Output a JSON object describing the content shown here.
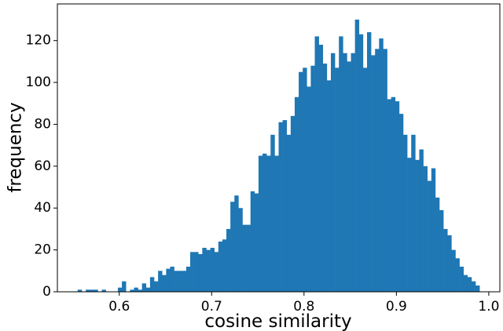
{
  "chart_data": {
    "type": "histogram",
    "x_label": "cosine similarity",
    "y_label": "frequency",
    "color": "#1f77b4",
    "bins": [
      0.555,
      0.55935,
      0.5637,
      0.56805,
      0.5724,
      0.57675,
      0.5811,
      0.58545,
      0.5898,
      0.59415,
      0.5985,
      0.60285,
      0.6072,
      0.61155,
      0.6159,
      0.62025,
      0.6246,
      0.62895,
      0.6333,
      0.63765,
      0.642,
      0.64635,
      0.6507,
      0.65505,
      0.6594,
      0.66375,
      0.6681,
      0.67245,
      0.6768,
      0.68115,
      0.6855,
      0.68985,
      0.6942,
      0.69855,
      0.7029,
      0.70725,
      0.7116,
      0.71595,
      0.7203,
      0.72465,
      0.729,
      0.73335,
      0.7377,
      0.74205,
      0.7464,
      0.75075,
      0.7551,
      0.75945,
      0.7638,
      0.76815,
      0.7725,
      0.77685,
      0.7812,
      0.78555,
      0.7899,
      0.79425,
      0.7986,
      0.80295,
      0.8073,
      0.81165,
      0.816,
      0.82035,
      0.8247,
      0.82905,
      0.8334,
      0.83775,
      0.8421,
      0.84645,
      0.8508,
      0.85515,
      0.8595,
      0.86385,
      0.8682,
      0.87255,
      0.8769,
      0.88125,
      0.8856,
      0.88995,
      0.8943,
      0.89865,
      0.903,
      0.90735,
      0.9117,
      0.91605,
      0.9204,
      0.92475,
      0.9291,
      0.93345,
      0.9378,
      0.94215,
      0.9465,
      0.95085,
      0.9552,
      0.95955,
      0.9639,
      0.96825,
      0.9726,
      0.97695,
      0.9813,
      0.98565,
      0.99
    ],
    "counts": [
      1,
      0,
      1,
      1,
      1,
      0,
      1,
      0,
      0,
      0,
      2,
      5,
      0,
      1,
      2,
      1,
      4,
      2,
      7,
      5,
      10,
      8,
      11,
      12,
      10,
      10,
      10,
      12,
      19,
      19,
      18,
      21,
      20,
      21,
      19,
      24,
      25,
      30,
      43,
      46,
      40,
      32,
      32,
      48,
      47,
      65,
      66,
      65,
      75,
      65,
      81,
      82,
      75,
      84,
      93,
      105,
      107,
      98,
      108,
      122,
      118,
      109,
      101,
      114,
      107,
      122,
      114,
      110,
      114,
      130,
      123,
      107,
      124,
      113,
      116,
      121,
      116,
      92,
      93,
      91,
      85,
      75,
      64,
      75,
      63,
      68,
      60,
      53,
      59,
      45,
      39,
      30,
      27,
      20,
      16,
      12,
      8,
      7,
      5,
      3
    ],
    "xlim": [
      0.533,
      1.012
    ],
    "ylim": [
      0,
      137.5
    ],
    "xticks": [
      0.6,
      0.7,
      0.8,
      0.9,
      {
        "value": 1.0,
        "label": "1.0"
      }
    ],
    "yticks": [
      0,
      20,
      40,
      60,
      80,
      100,
      120
    ]
  }
}
